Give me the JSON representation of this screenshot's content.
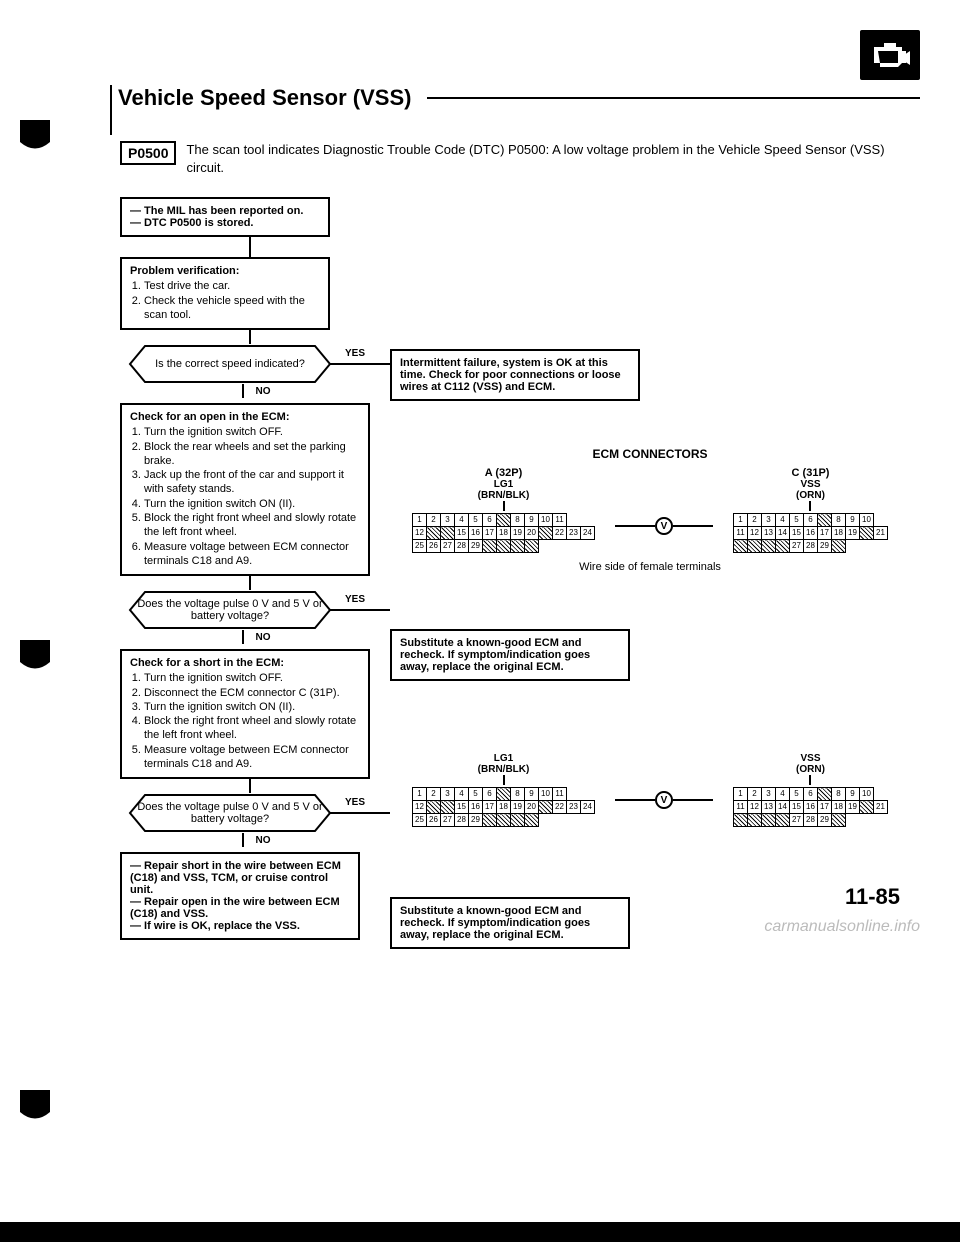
{
  "page": {
    "title": "Vehicle Speed Sensor (VSS)",
    "page_number": "11-85",
    "watermark": "carmanualsonline.info"
  },
  "dtc": {
    "code": "P0500",
    "intro": "The scan tool indicates Diagnostic Trouble Code (DTC) P0500: A low voltage problem in the Vehicle Speed Sensor (VSS) circuit."
  },
  "flow": {
    "box1": "— The MIL has been reported on.\n— DTC P0500 is stored.",
    "box2_title": "Problem verification:",
    "box2_items": [
      "Test drive the car.",
      "Check the vehicle speed with the scan tool."
    ],
    "dec1": "Is the correct speed indicated?",
    "yes": "YES",
    "no": "NO",
    "res1": "Intermittent failure, system is OK at this time. Check for poor connections or loose wires at C112 (VSS) and ECM.",
    "box3_title": "Check for an open in the ECM:",
    "box3_items": [
      "Turn the ignition switch OFF.",
      "Block the rear wheels and set the parking brake.",
      "Jack up the front of the car and support it with safety stands.",
      "Turn the ignition switch ON (II).",
      "Block the right front wheel and slowly rotate the left front wheel.",
      "Measure voltage between ECM connector terminals C18 and A9."
    ],
    "dec2": "Does the voltage pulse 0 V and 5 V or battery voltage?",
    "res2": "Substitute a known-good ECM and recheck. If symptom/indication goes away, replace the original ECM.",
    "box4_title": "Check for a short in the ECM:",
    "box4_items": [
      "Turn the ignition switch OFF.",
      "Disconnect the ECM connector C (31P).",
      "Turn the ignition switch ON (II).",
      "Block the right front wheel and slowly rotate the left front wheel.",
      "Measure voltage between ECM connector terminals C18 and A9."
    ],
    "dec3": "Does the voltage pulse 0 V and 5 V or battery voltage?",
    "res3": "Substitute a known-good ECM and recheck. If symptom/indication goes away, replace the original ECM.",
    "box5": "— Repair short in the wire between ECM (C18) and VSS, TCM, or cruise control unit.\n— Repair open in the wire between ECM (C18) and VSS.\n— If wire is OK, replace the VSS."
  },
  "connectors": {
    "title": "ECM CONNECTORS",
    "a_label": "A (32P)",
    "c_label": "C (31P)",
    "lg1_label": "LG1",
    "lg1_wire": "(BRN/BLK)",
    "vss_label": "VSS",
    "vss_wire": "(ORN)",
    "v_symbol": "V",
    "wire_note": "Wire side of female terminals",
    "a_rows": [
      [
        "1",
        "2",
        "3",
        "4",
        "5",
        "6",
        "",
        "8",
        "9",
        "10",
        "11"
      ],
      [
        "12",
        "",
        "",
        "15",
        "16",
        "17",
        "18",
        "19",
        "20",
        "",
        "22",
        "23",
        "24"
      ],
      [
        "25",
        "26",
        "27",
        "28",
        "29",
        "",
        "",
        "",
        ""
      ]
    ],
    "c_rows": [
      [
        "1",
        "2",
        "3",
        "4",
        "5",
        "6",
        "",
        "8",
        "9",
        "10"
      ],
      [
        "11",
        "12",
        "13",
        "14",
        "15",
        "16",
        "17",
        "18",
        "19",
        "",
        "21"
      ],
      [
        "",
        "",
        "",
        "",
        "27",
        "28",
        "29",
        ""
      ]
    ]
  },
  "colors": {
    "bg": "#ffffff",
    "fg": "#000000",
    "watermark": "rgba(120,120,120,0.5)"
  }
}
